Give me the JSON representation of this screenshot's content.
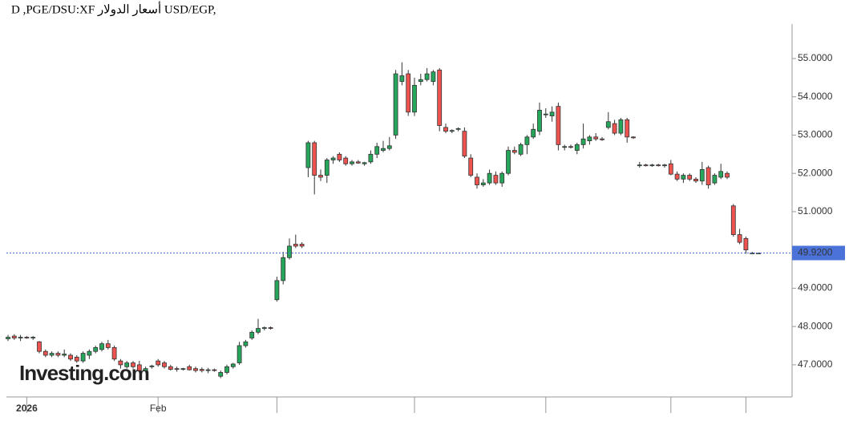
{
  "chart_data": {
    "type": "candlestick",
    "title": "D ,PGE/DSU:XF أسعار الدولار USD/EGP,",
    "watermark": "Investing.com",
    "up_color": "#26a65b",
    "down_color": "#ef5350",
    "ylim": [
      46.16,
      55.9
    ],
    "yticks": [
      {
        "value": 47,
        "label": "47.0000"
      },
      {
        "value": 48,
        "label": "48.0000"
      },
      {
        "value": 49,
        "label": "49.0000"
      },
      {
        "value": 50,
        "label": "50.0000"
      },
      {
        "value": 51,
        "label": "51.0000"
      },
      {
        "value": 52,
        "label": "52.0000"
      },
      {
        "value": 53,
        "label": "53.0000"
      },
      {
        "value": 54,
        "label": "54.0000"
      },
      {
        "value": 55,
        "label": "55.0000"
      }
    ],
    "xticks": [
      {
        "value": 3,
        "label": "2026"
      },
      {
        "value": 24,
        "label": "Feb"
      },
      {
        "value": 43,
        "label": null
      },
      {
        "value": 65,
        "label": null
      },
      {
        "value": 86,
        "label": null
      },
      {
        "value": 106,
        "label": null
      },
      {
        "value": 118,
        "label": null
      }
    ],
    "last_price": {
      "value": 49.92,
      "label": "49.9200"
    },
    "candles": [
      {
        "o": 47.68,
        "h": 47.78,
        "l": 47.62,
        "c": 47.72
      },
      {
        "o": 47.75,
        "h": 47.8,
        "l": 47.65,
        "c": 47.7
      },
      {
        "o": 47.7,
        "h": 47.78,
        "l": 47.62,
        "c": 47.72
      },
      {
        "o": 47.72,
        "h": 47.75,
        "l": 47.68,
        "c": 47.7
      },
      {
        "o": 47.7,
        "h": 47.75,
        "l": 47.65,
        "c": 47.72
      },
      {
        "o": 47.6,
        "h": 47.62,
        "l": 47.3,
        "c": 47.35
      },
      {
        "o": 47.35,
        "h": 47.4,
        "l": 47.2,
        "c": 47.25
      },
      {
        "o": 47.25,
        "h": 47.35,
        "l": 47.2,
        "c": 47.3
      },
      {
        "o": 47.3,
        "h": 47.35,
        "l": 47.2,
        "c": 47.25
      },
      {
        "o": 47.25,
        "h": 47.4,
        "l": 47.2,
        "c": 47.28
      },
      {
        "o": 47.25,
        "h": 47.3,
        "l": 47.1,
        "c": 47.15
      },
      {
        "o": 47.2,
        "h": 47.25,
        "l": 47.05,
        "c": 47.1
      },
      {
        "o": 47.1,
        "h": 47.35,
        "l": 47.05,
        "c": 47.3
      },
      {
        "o": 47.25,
        "h": 47.4,
        "l": 47.15,
        "c": 47.35
      },
      {
        "o": 47.35,
        "h": 47.5,
        "l": 47.3,
        "c": 47.45
      },
      {
        "o": 47.4,
        "h": 47.6,
        "l": 47.35,
        "c": 47.55
      },
      {
        "o": 47.55,
        "h": 47.65,
        "l": 47.4,
        "c": 47.45
      },
      {
        "o": 47.45,
        "h": 47.5,
        "l": 47.1,
        "c": 47.15
      },
      {
        "o": 47.1,
        "h": 47.15,
        "l": 46.9,
        "c": 47.0
      },
      {
        "o": 46.95,
        "h": 47.1,
        "l": 46.9,
        "c": 47.05
      },
      {
        "o": 47.05,
        "h": 47.1,
        "l": 46.9,
        "c": 46.95
      },
      {
        "o": 47.0,
        "h": 47.1,
        "l": 46.8,
        "c": 46.85
      },
      {
        "o": 46.85,
        "h": 46.95,
        "l": 46.8,
        "c": 46.9
      },
      {
        "o": 46.95,
        "h": 47.0,
        "l": 46.9,
        "c": 46.97
      },
      {
        "o": 47.1,
        "h": 47.15,
        "l": 46.95,
        "c": 47.0
      },
      {
        "o": 47.05,
        "h": 47.1,
        "l": 46.9,
        "c": 46.95
      },
      {
        "o": 46.95,
        "h": 47.0,
        "l": 46.85,
        "c": 46.88
      },
      {
        "o": 46.9,
        "h": 46.95,
        "l": 46.82,
        "c": 46.88
      },
      {
        "o": 46.88,
        "h": 46.92,
        "l": 46.85,
        "c": 46.9
      },
      {
        "o": 46.95,
        "h": 47.0,
        "l": 46.85,
        "c": 46.87
      },
      {
        "o": 46.9,
        "h": 46.95,
        "l": 46.8,
        "c": 46.85
      },
      {
        "o": 46.88,
        "h": 46.93,
        "l": 46.8,
        "c": 46.85
      },
      {
        "o": 46.85,
        "h": 46.92,
        "l": 46.78,
        "c": 46.87
      },
      {
        "o": 46.87,
        "h": 46.9,
        "l": 46.82,
        "c": 46.85
      },
      {
        "o": 46.7,
        "h": 46.85,
        "l": 46.65,
        "c": 46.8
      },
      {
        "o": 46.8,
        "h": 47.0,
        "l": 46.75,
        "c": 46.95
      },
      {
        "o": 46.95,
        "h": 47.05,
        "l": 46.9,
        "c": 47.02
      },
      {
        "o": 47.05,
        "h": 47.6,
        "l": 47.0,
        "c": 47.5
      },
      {
        "o": 47.5,
        "h": 47.65,
        "l": 47.45,
        "c": 47.6
      },
      {
        "o": 47.7,
        "h": 47.9,
        "l": 47.65,
        "c": 47.85
      },
      {
        "o": 47.85,
        "h": 48.2,
        "l": 47.8,
        "c": 47.95
      },
      {
        "o": 47.95,
        "h": 48.0,
        "l": 47.9,
        "c": 47.97
      },
      {
        "o": 47.97,
        "h": 48.0,
        "l": 47.92,
        "c": 47.95
      },
      {
        "o": 48.7,
        "h": 49.3,
        "l": 48.65,
        "c": 49.2
      },
      {
        "o": 49.2,
        "h": 49.95,
        "l": 49.1,
        "c": 49.8
      },
      {
        "o": 49.8,
        "h": 50.3,
        "l": 49.75,
        "c": 50.1
      },
      {
        "o": 50.15,
        "h": 50.4,
        "l": 50.05,
        "c": 50.1
      },
      {
        "o": 50.15,
        "h": 50.2,
        "l": 50.05,
        "c": 50.1
      },
      {
        "o": 52.15,
        "h": 52.85,
        "l": 51.9,
        "c": 52.8
      },
      {
        "o": 52.8,
        "h": 52.85,
        "l": 51.45,
        "c": 51.95
      },
      {
        "o": 51.95,
        "h": 52.1,
        "l": 51.8,
        "c": 51.9
      },
      {
        "o": 51.95,
        "h": 52.4,
        "l": 51.75,
        "c": 52.35
      },
      {
        "o": 52.35,
        "h": 52.45,
        "l": 52.25,
        "c": 52.4
      },
      {
        "o": 52.5,
        "h": 52.55,
        "l": 52.3,
        "c": 52.35
      },
      {
        "o": 52.4,
        "h": 52.45,
        "l": 52.2,
        "c": 52.25
      },
      {
        "o": 52.25,
        "h": 52.35,
        "l": 52.2,
        "c": 52.3
      },
      {
        "o": 52.3,
        "h": 52.35,
        "l": 52.25,
        "c": 52.27
      },
      {
        "o": 52.25,
        "h": 52.3,
        "l": 52.2,
        "c": 52.28
      },
      {
        "o": 52.3,
        "h": 52.6,
        "l": 52.25,
        "c": 52.5
      },
      {
        "o": 52.5,
        "h": 52.8,
        "l": 52.4,
        "c": 52.7
      },
      {
        "o": 52.6,
        "h": 52.85,
        "l": 52.55,
        "c": 52.65
      },
      {
        "o": 52.65,
        "h": 52.95,
        "l": 52.6,
        "c": 52.72
      },
      {
        "o": 53.0,
        "h": 54.7,
        "l": 52.9,
        "c": 54.6
      },
      {
        "o": 54.4,
        "h": 54.9,
        "l": 54.3,
        "c": 54.55
      },
      {
        "o": 54.6,
        "h": 54.7,
        "l": 53.5,
        "c": 53.6
      },
      {
        "o": 53.6,
        "h": 54.5,
        "l": 53.5,
        "c": 54.3
      },
      {
        "o": 54.4,
        "h": 54.6,
        "l": 54.3,
        "c": 54.45
      },
      {
        "o": 54.45,
        "h": 54.75,
        "l": 54.4,
        "c": 54.6
      },
      {
        "o": 54.4,
        "h": 54.7,
        "l": 54.3,
        "c": 54.65
      },
      {
        "o": 54.7,
        "h": 54.75,
        "l": 53.1,
        "c": 53.25
      },
      {
        "o": 53.2,
        "h": 53.3,
        "l": 53.05,
        "c": 53.1
      },
      {
        "o": 53.1,
        "h": 53.15,
        "l": 53.05,
        "c": 53.12
      },
      {
        "o": 53.15,
        "h": 53.2,
        "l": 53.1,
        "c": 53.17
      },
      {
        "o": 53.1,
        "h": 53.2,
        "l": 52.4,
        "c": 52.45
      },
      {
        "o": 52.4,
        "h": 52.5,
        "l": 51.9,
        "c": 51.95
      },
      {
        "o": 51.9,
        "h": 52.0,
        "l": 51.6,
        "c": 51.7
      },
      {
        "o": 51.7,
        "h": 51.85,
        "l": 51.65,
        "c": 51.75
      },
      {
        "o": 51.75,
        "h": 52.1,
        "l": 51.7,
        "c": 52.0
      },
      {
        "o": 51.95,
        "h": 52.05,
        "l": 51.7,
        "c": 51.75
      },
      {
        "o": 51.75,
        "h": 52.05,
        "l": 51.65,
        "c": 52.0
      },
      {
        "o": 52.0,
        "h": 52.7,
        "l": 51.95,
        "c": 52.6
      },
      {
        "o": 52.6,
        "h": 52.7,
        "l": 52.5,
        "c": 52.55
      },
      {
        "o": 52.5,
        "h": 52.8,
        "l": 52.45,
        "c": 52.75
      },
      {
        "o": 52.75,
        "h": 53.0,
        "l": 52.5,
        "c": 52.95
      },
      {
        "o": 52.95,
        "h": 53.3,
        "l": 52.9,
        "c": 53.15
      },
      {
        "o": 53.1,
        "h": 53.85,
        "l": 53.0,
        "c": 53.65
      },
      {
        "o": 53.55,
        "h": 53.7,
        "l": 53.45,
        "c": 53.55
      },
      {
        "o": 53.5,
        "h": 53.75,
        "l": 53.35,
        "c": 53.6
      },
      {
        "o": 53.75,
        "h": 53.85,
        "l": 52.6,
        "c": 52.75
      },
      {
        "o": 52.7,
        "h": 52.75,
        "l": 52.6,
        "c": 52.7
      },
      {
        "o": 52.7,
        "h": 52.75,
        "l": 52.65,
        "c": 52.68
      },
      {
        "o": 52.6,
        "h": 52.8,
        "l": 52.5,
        "c": 52.75
      },
      {
        "o": 52.75,
        "h": 53.3,
        "l": 52.65,
        "c": 52.9
      },
      {
        "o": 52.85,
        "h": 53.0,
        "l": 52.75,
        "c": 52.95
      },
      {
        "o": 52.95,
        "h": 53.05,
        "l": 52.85,
        "c": 52.9
      },
      {
        "o": 52.9,
        "h": 52.95,
        "l": 52.85,
        "c": 52.88
      },
      {
        "o": 53.2,
        "h": 53.6,
        "l": 53.15,
        "c": 53.35
      },
      {
        "o": 53.3,
        "h": 53.4,
        "l": 53.0,
        "c": 53.05
      },
      {
        "o": 53.05,
        "h": 53.45,
        "l": 53.0,
        "c": 53.4
      },
      {
        "o": 53.4,
        "h": 53.45,
        "l": 52.8,
        "c": 52.95
      },
      {
        "o": 52.95,
        "h": 52.97,
        "l": 52.9,
        "c": 52.93
      },
      {
        "o": 52.2,
        "h": 52.3,
        "l": 52.15,
        "c": 52.22
      },
      {
        "o": 52.22,
        "h": 52.25,
        "l": 52.18,
        "c": 52.2
      },
      {
        "o": 52.2,
        "h": 52.25,
        "l": 52.17,
        "c": 52.22
      },
      {
        "o": 52.22,
        "h": 52.25,
        "l": 52.18,
        "c": 52.2
      },
      {
        "o": 52.2,
        "h": 52.25,
        "l": 52.15,
        "c": 52.22
      },
      {
        "o": 52.25,
        "h": 52.35,
        "l": 51.95,
        "c": 51.98
      },
      {
        "o": 51.98,
        "h": 52.05,
        "l": 51.8,
        "c": 51.85
      },
      {
        "o": 51.85,
        "h": 52.0,
        "l": 51.75,
        "c": 51.95
      },
      {
        "o": 51.95,
        "h": 52.0,
        "l": 51.8,
        "c": 51.85
      },
      {
        "o": 51.85,
        "h": 51.9,
        "l": 51.75,
        "c": 51.8
      },
      {
        "o": 51.8,
        "h": 52.3,
        "l": 51.7,
        "c": 52.1
      },
      {
        "o": 52.15,
        "h": 52.2,
        "l": 51.6,
        "c": 51.7
      },
      {
        "o": 51.75,
        "h": 52.0,
        "l": 51.7,
        "c": 51.95
      },
      {
        "o": 51.9,
        "h": 52.25,
        "l": 51.85,
        "c": 52.05
      },
      {
        "o": 52.0,
        "h": 52.05,
        "l": 51.85,
        "c": 51.9
      },
      {
        "o": 51.15,
        "h": 51.2,
        "l": 50.35,
        "c": 50.4
      },
      {
        "o": 50.4,
        "h": 50.55,
        "l": 50.15,
        "c": 50.2
      },
      {
        "o": 50.3,
        "h": 50.35,
        "l": 49.9,
        "c": 50.0
      },
      {
        "o": 49.92,
        "h": 49.95,
        "l": 49.9,
        "c": 49.92
      },
      {
        "o": 49.92,
        "h": 49.93,
        "l": 49.91,
        "c": 49.92
      }
    ]
  }
}
